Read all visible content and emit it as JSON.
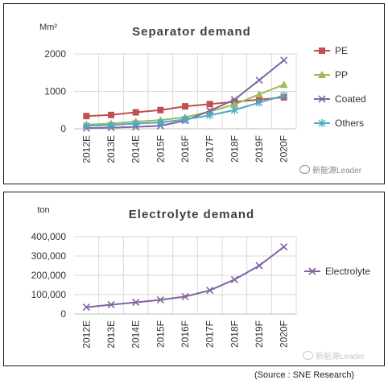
{
  "watermark": "新能源Leader",
  "source": "(Source : SNE Research)",
  "chart_data": [
    {
      "type": "line",
      "title": "Separator demand",
      "ylabel": "Mm²",
      "categories": [
        "2012E",
        "2013E",
        "2014E",
        "2015F",
        "2016F",
        "2017F",
        "2018F",
        "2019F",
        "2020F"
      ],
      "ylim": [
        0,
        2000
      ],
      "yticks": [
        "0",
        "1000",
        "2000"
      ],
      "grid": true,
      "legend": "right",
      "series": [
        {
          "name": "PE",
          "color": "#c0504d",
          "marker": "square",
          "values": [
            340,
            370,
            440,
            500,
            600,
            660,
            720,
            780,
            840
          ]
        },
        {
          "name": "PP",
          "color": "#9bbb59",
          "marker": "triangle",
          "values": [
            110,
            140,
            190,
            230,
            310,
            460,
            650,
            920,
            1180
          ]
        },
        {
          "name": "Coated",
          "color": "#8064a2",
          "marker": "x",
          "values": [
            20,
            30,
            50,
            80,
            220,
            480,
            780,
            1300,
            1830
          ]
        },
        {
          "name": "Others",
          "color": "#4bacc6",
          "marker": "asterisk",
          "values": [
            80,
            100,
            140,
            170,
            250,
            360,
            500,
            700,
            890
          ]
        }
      ]
    },
    {
      "type": "line",
      "title": "Electrolyte demand",
      "ylabel": "ton",
      "categories": [
        "2012E",
        "2013E",
        "2014E",
        "2015F",
        "2016F",
        "2017F",
        "2018F",
        "2019F",
        "2020F"
      ],
      "ylim": [
        0,
        400000
      ],
      "yticks": [
        "0",
        "100,000",
        "200,000",
        "300,000",
        "400,000"
      ],
      "grid": true,
      "legend": "right",
      "series": [
        {
          "name": "Electrolyte",
          "color": "#8064a2",
          "marker": "x",
          "values": [
            35000,
            48000,
            60000,
            73000,
            90000,
            122000,
            178000,
            250000,
            347000
          ]
        }
      ]
    }
  ]
}
